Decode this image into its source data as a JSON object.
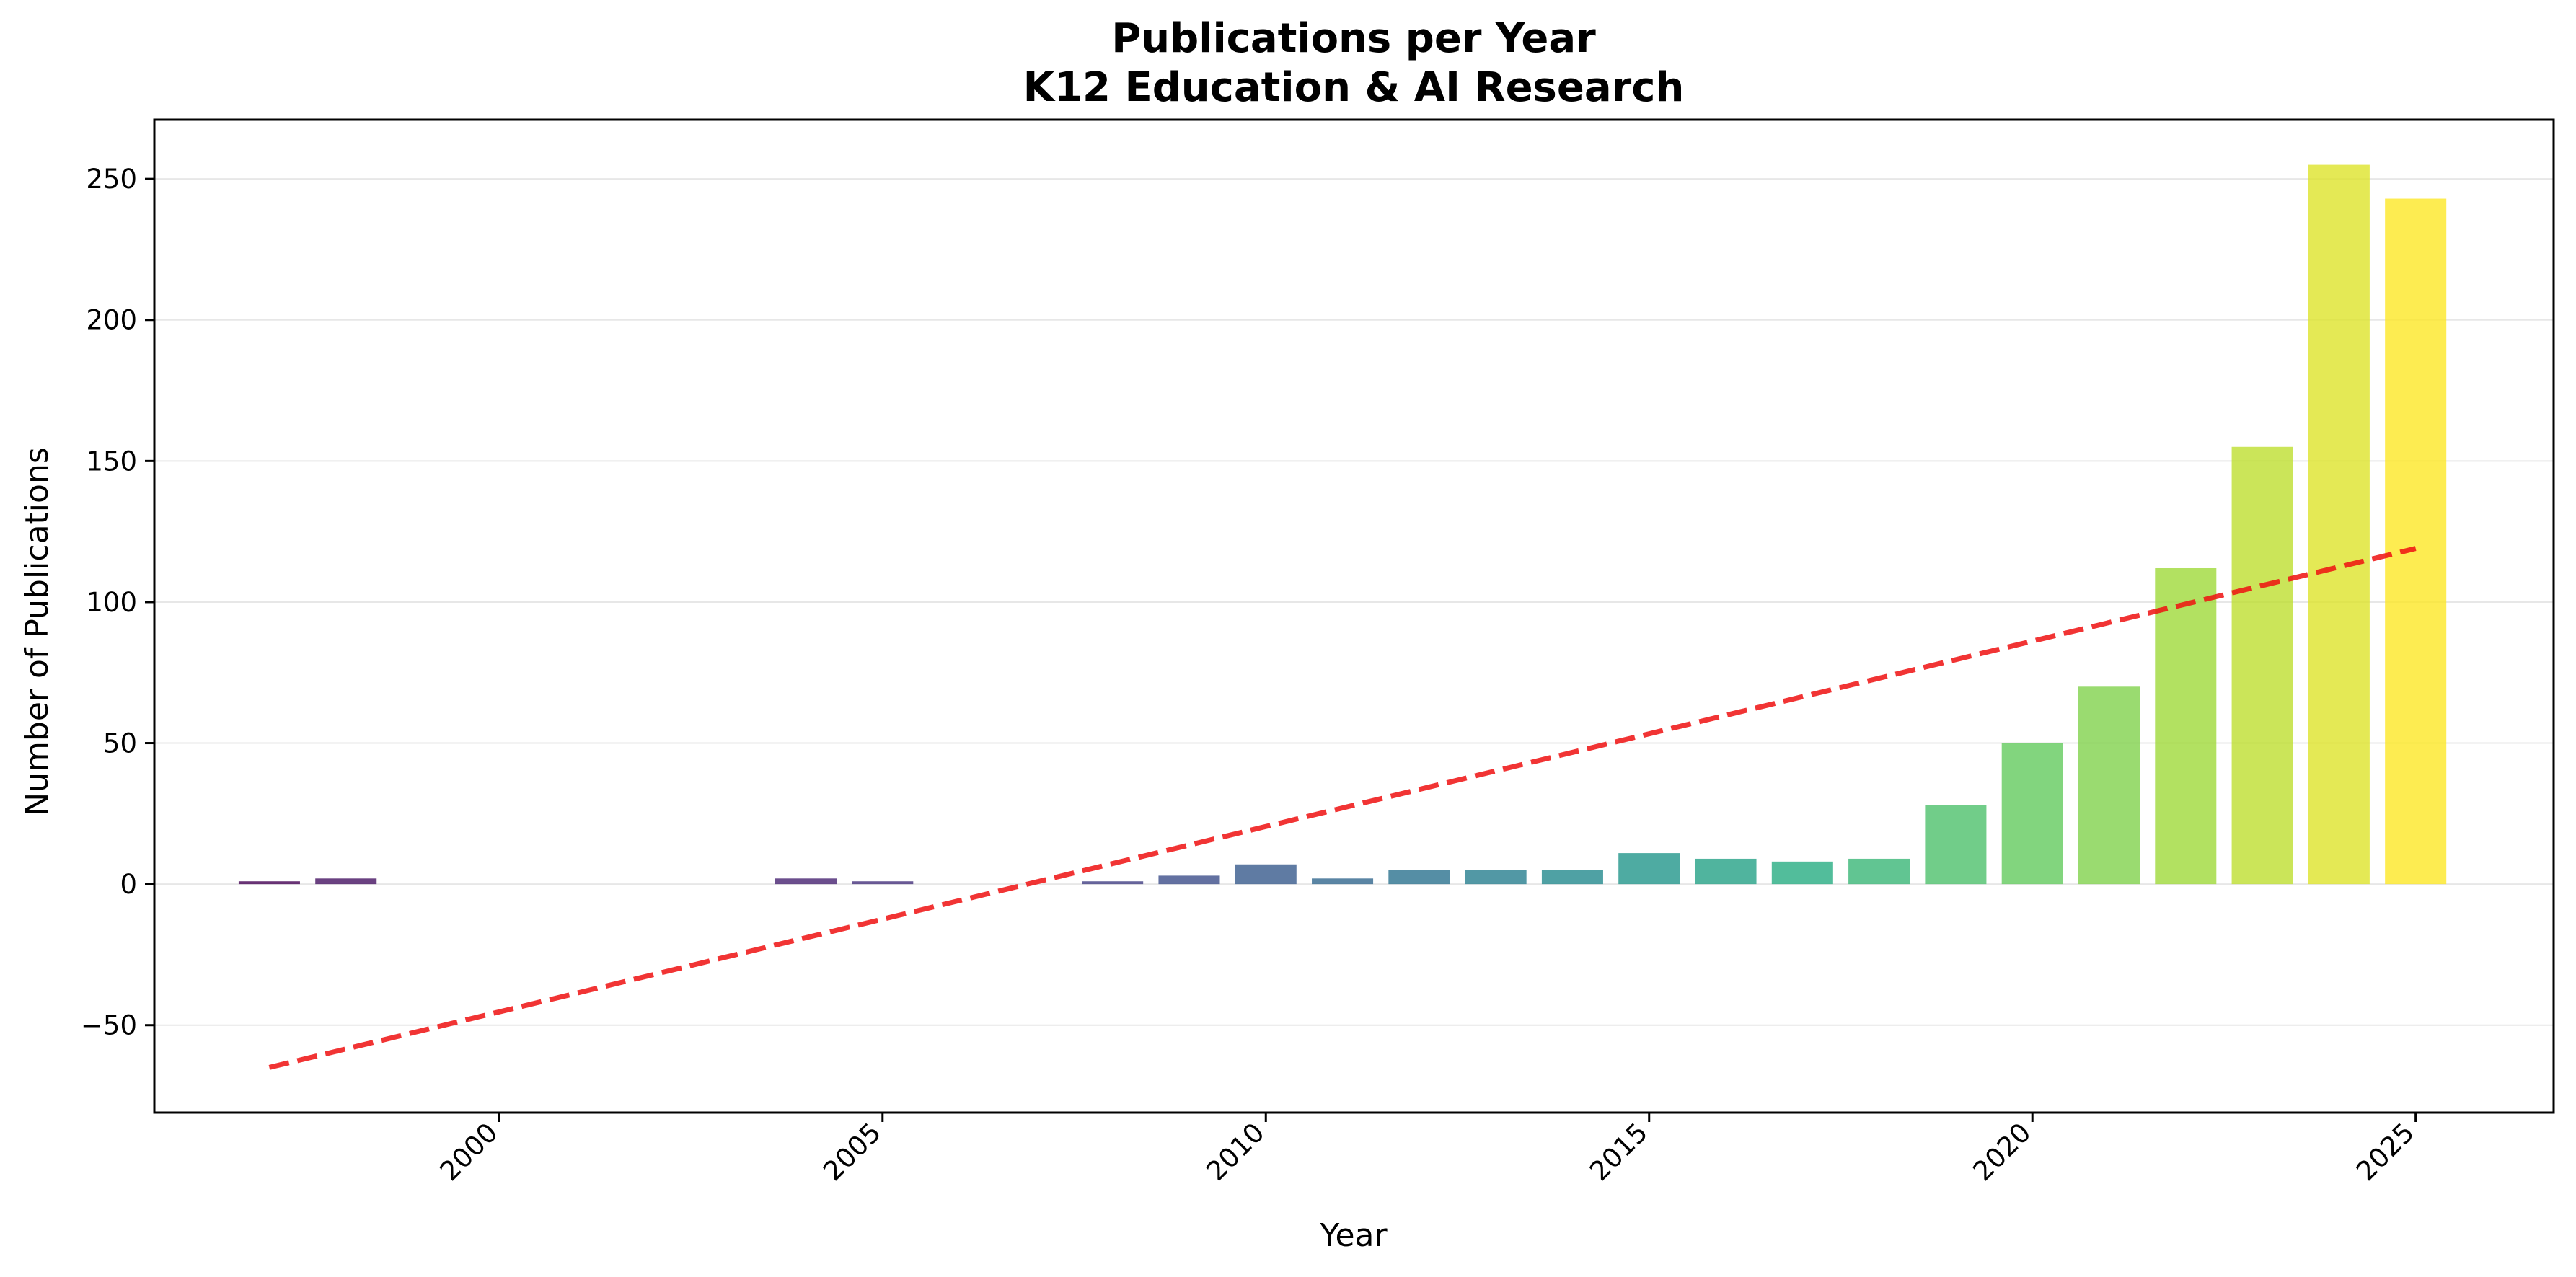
{
  "chart_data": {
    "type": "bar",
    "title": "Publications per Year",
    "subtitle": "K12 Education & AI Research",
    "xlabel": "Year",
    "ylabel": "Number of Publications",
    "xlim": [
      1995.5,
      2026.8
    ],
    "ylim": [
      -81,
      271
    ],
    "x_ticks": [
      2000,
      2005,
      2010,
      2015,
      2020,
      2025
    ],
    "y_ticks": [
      -50,
      0,
      50,
      100,
      150,
      200,
      250
    ],
    "grid": "horizontal",
    "colormap": "viridis",
    "bar_opacity": 0.8,
    "x": [
      1997,
      1998,
      2004,
      2005,
      2008,
      2009,
      2010,
      2011,
      2012,
      2013,
      2014,
      2015,
      2016,
      2017,
      2018,
      2019,
      2020,
      2021,
      2022,
      2023,
      2024,
      2025
    ],
    "values": [
      1,
      2,
      2,
      1,
      1,
      3,
      7,
      2,
      5,
      5,
      5,
      11,
      9,
      8,
      9,
      28,
      50,
      70,
      112,
      155,
      255,
      243
    ],
    "trend_line": {
      "style": "dashed",
      "color": "#ee1111",
      "points": [
        [
          1997,
          -65
        ],
        [
          2025,
          119
        ]
      ]
    }
  }
}
